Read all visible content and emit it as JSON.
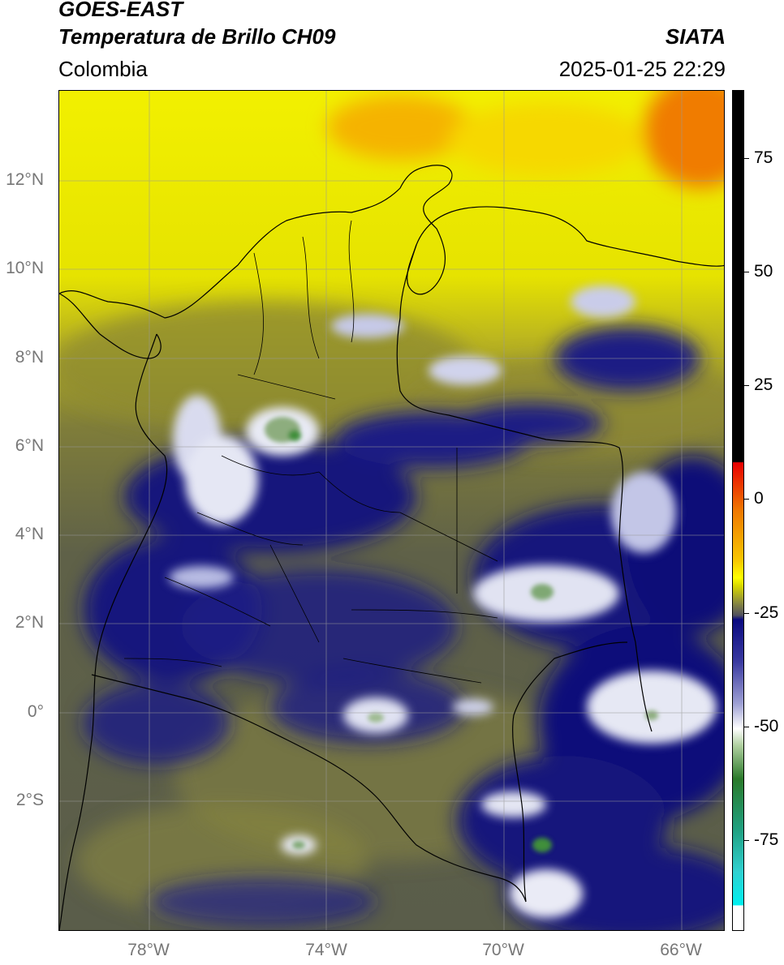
{
  "header": {
    "satellite": "GOES-EAST",
    "product": "Temperatura de Brillo CH09",
    "region": "Colombia",
    "organization": "SIATA",
    "datetime": "2025-01-25 22:29"
  },
  "map": {
    "projection": "PlateCarree",
    "lon_range": [
      -80,
      -65
    ],
    "lat_range": [
      -5,
      14
    ],
    "lat_ticks": [
      {
        "value": 12,
        "label": "12°N"
      },
      {
        "value": 10,
        "label": "10°N"
      },
      {
        "value": 8,
        "label": "8°N"
      },
      {
        "value": 6,
        "label": "6°N"
      },
      {
        "value": 4,
        "label": "4°N"
      },
      {
        "value": 2,
        "label": "2°N"
      },
      {
        "value": 0,
        "label": "0°"
      },
      {
        "value": -2,
        "label": "2°S"
      }
    ],
    "lon_ticks": [
      {
        "value": -78,
        "label": "78°W"
      },
      {
        "value": -74,
        "label": "74°W"
      },
      {
        "value": -70,
        "label": "70°W"
      },
      {
        "value": -66,
        "label": "66°W"
      }
    ],
    "grid": true,
    "colors": {
      "warm_orange": "#f07b00",
      "yellow": "#f2f200",
      "olive": "#6f7040",
      "navy": "#10107a",
      "cold_white": "#e8eaf5",
      "cold_green": "#3f8f3a",
      "border": "#000000",
      "grid": "#9a9a9a"
    }
  },
  "colorbar": {
    "ticks": [
      {
        "value": 75,
        "label": "75"
      },
      {
        "value": 50,
        "label": "50"
      },
      {
        "value": 25,
        "label": "25"
      },
      {
        "value": 0,
        "label": "0"
      },
      {
        "value": -25,
        "label": "-25"
      },
      {
        "value": -50,
        "label": "-50"
      },
      {
        "value": -75,
        "label": "-75"
      }
    ],
    "range": [
      -95,
      90
    ]
  }
}
